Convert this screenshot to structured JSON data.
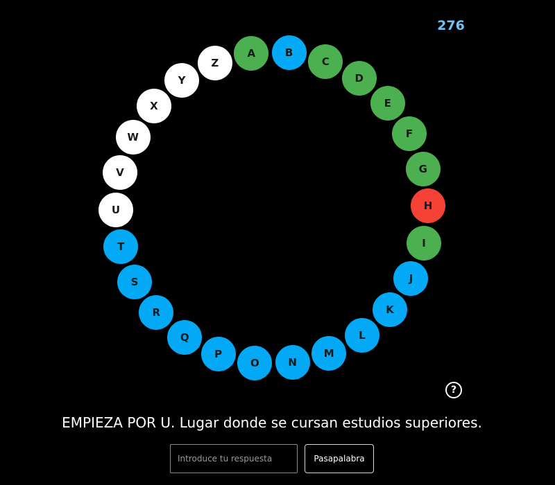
{
  "score": "276",
  "status_colors": {
    "correct": "#4caf50",
    "pending": "#03a9f4",
    "wrong": "#f44336",
    "current": "#ffffff"
  },
  "letters": [
    {
      "letter": "A",
      "status": "correct"
    },
    {
      "letter": "B",
      "status": "pending"
    },
    {
      "letter": "C",
      "status": "correct"
    },
    {
      "letter": "D",
      "status": "correct"
    },
    {
      "letter": "E",
      "status": "correct"
    },
    {
      "letter": "F",
      "status": "correct"
    },
    {
      "letter": "G",
      "status": "correct"
    },
    {
      "letter": "H",
      "status": "wrong"
    },
    {
      "letter": "I",
      "status": "correct"
    },
    {
      "letter": "J",
      "status": "pending"
    },
    {
      "letter": "K",
      "status": "pending"
    },
    {
      "letter": "L",
      "status": "pending"
    },
    {
      "letter": "M",
      "status": "pending"
    },
    {
      "letter": "N",
      "status": "pending"
    },
    {
      "letter": "O",
      "status": "pending"
    },
    {
      "letter": "P",
      "status": "pending"
    },
    {
      "letter": "Q",
      "status": "pending"
    },
    {
      "letter": "R",
      "status": "pending"
    },
    {
      "letter": "S",
      "status": "pending"
    },
    {
      "letter": "T",
      "status": "pending"
    },
    {
      "letter": "U",
      "status": "current"
    },
    {
      "letter": "V",
      "status": "current"
    },
    {
      "letter": "W",
      "status": "current"
    },
    {
      "letter": "X",
      "status": "current"
    },
    {
      "letter": "Y",
      "status": "current"
    },
    {
      "letter": "Z",
      "status": "current"
    }
  ],
  "help_icon": "question-circle-icon",
  "help_glyph": "?",
  "question": "EMPIEZA POR U. Lugar donde se cursan estudios superiores.",
  "answer": {
    "value": "",
    "placeholder": "Introduce tu respuesta"
  },
  "pass_button_label": "Pasapalabra"
}
